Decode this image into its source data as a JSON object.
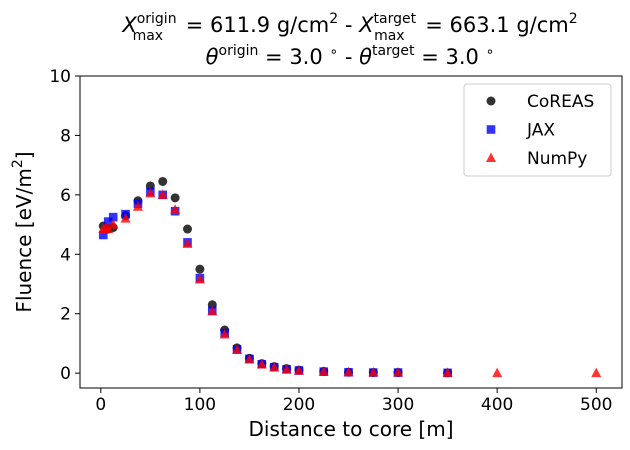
{
  "chart_data": {
    "type": "scatter",
    "title": {
      "line1": {
        "x1": "X",
        "sup1": "origin",
        "sub1": "max",
        "mid1": " =  611.9 g/cm",
        "sq1": "2",
        "sep": " -  ",
        "x2": "X",
        "sup2": "target",
        "sub2": "max",
        "mid2": " =  663.1 g/cm",
        "sq2": "2"
      },
      "line2": {
        "t1": "θ",
        "sup1": "origin",
        "mid1": " =  3.0 ",
        "deg1": "∘",
        "sep": " - ",
        "t2": "θ",
        "sup2": "target",
        "mid2": " =  3.0 ",
        "deg2": "∘"
      }
    },
    "xlabel": "Distance to core [m]",
    "ylabel": {
      "text": "Fluence [eV/m",
      "sup": "2",
      "close": "]"
    },
    "xlim": [
      -21,
      526
    ],
    "ylim": [
      -0.5,
      10
    ],
    "xticks": [
      0,
      100,
      200,
      300,
      400,
      500
    ],
    "yticks": [
      0,
      2,
      4,
      6,
      8,
      10
    ],
    "grid": false,
    "legend_placement": "top-right",
    "series": [
      {
        "name": "CoREAS",
        "color": "#000000",
        "marker": "circle",
        "x": [
          2.5,
          7.5,
          12.5,
          25,
          37.5,
          50,
          62.5,
          75,
          87.5,
          100,
          112.5,
          125,
          137.5,
          150,
          162.5,
          175,
          187.5,
          200,
          225,
          250,
          275,
          300,
          350
        ],
        "y": [
          4.95,
          4.85,
          4.9,
          5.3,
          5.8,
          6.3,
          6.45,
          5.9,
          4.85,
          3.5,
          2.3,
          1.45,
          0.85,
          0.5,
          0.32,
          0.22,
          0.15,
          0.1,
          0.06,
          0.03,
          0.02,
          0.02,
          0.01
        ]
      },
      {
        "name": "JAX",
        "color": "#0000ff",
        "marker": "square",
        "x": [
          2.5,
          7.5,
          12.5,
          25,
          37.5,
          50,
          62.5,
          75,
          87.5,
          100,
          112.5,
          125,
          137.5,
          150,
          162.5,
          175,
          187.5,
          200,
          225,
          250,
          275,
          300,
          350
        ],
        "y": [
          4.65,
          5.1,
          5.25,
          5.35,
          5.7,
          6.1,
          6.0,
          5.45,
          4.4,
          3.2,
          2.1,
          1.35,
          0.8,
          0.48,
          0.3,
          0.2,
          0.13,
          0.09,
          0.05,
          0.03,
          0.02,
          0.02,
          0.01
        ]
      },
      {
        "name": "NumPy",
        "color": "#ff0000",
        "marker": "triangle",
        "x": [
          2.5,
          5,
          7.5,
          12.5,
          25,
          37.5,
          50,
          62.5,
          75,
          87.5,
          100,
          112.5,
          125,
          137.5,
          150,
          162.5,
          175,
          187.5,
          200,
          225,
          250,
          275,
          300,
          350,
          400,
          500
        ],
        "y": [
          4.85,
          4.9,
          4.85,
          5.0,
          5.2,
          5.6,
          6.05,
          6.0,
          5.5,
          4.35,
          3.15,
          2.08,
          1.3,
          0.78,
          0.46,
          0.29,
          0.19,
          0.12,
          0.08,
          0.05,
          0.03,
          0.02,
          0.02,
          0.01,
          0.0,
          0.0
        ]
      }
    ]
  }
}
